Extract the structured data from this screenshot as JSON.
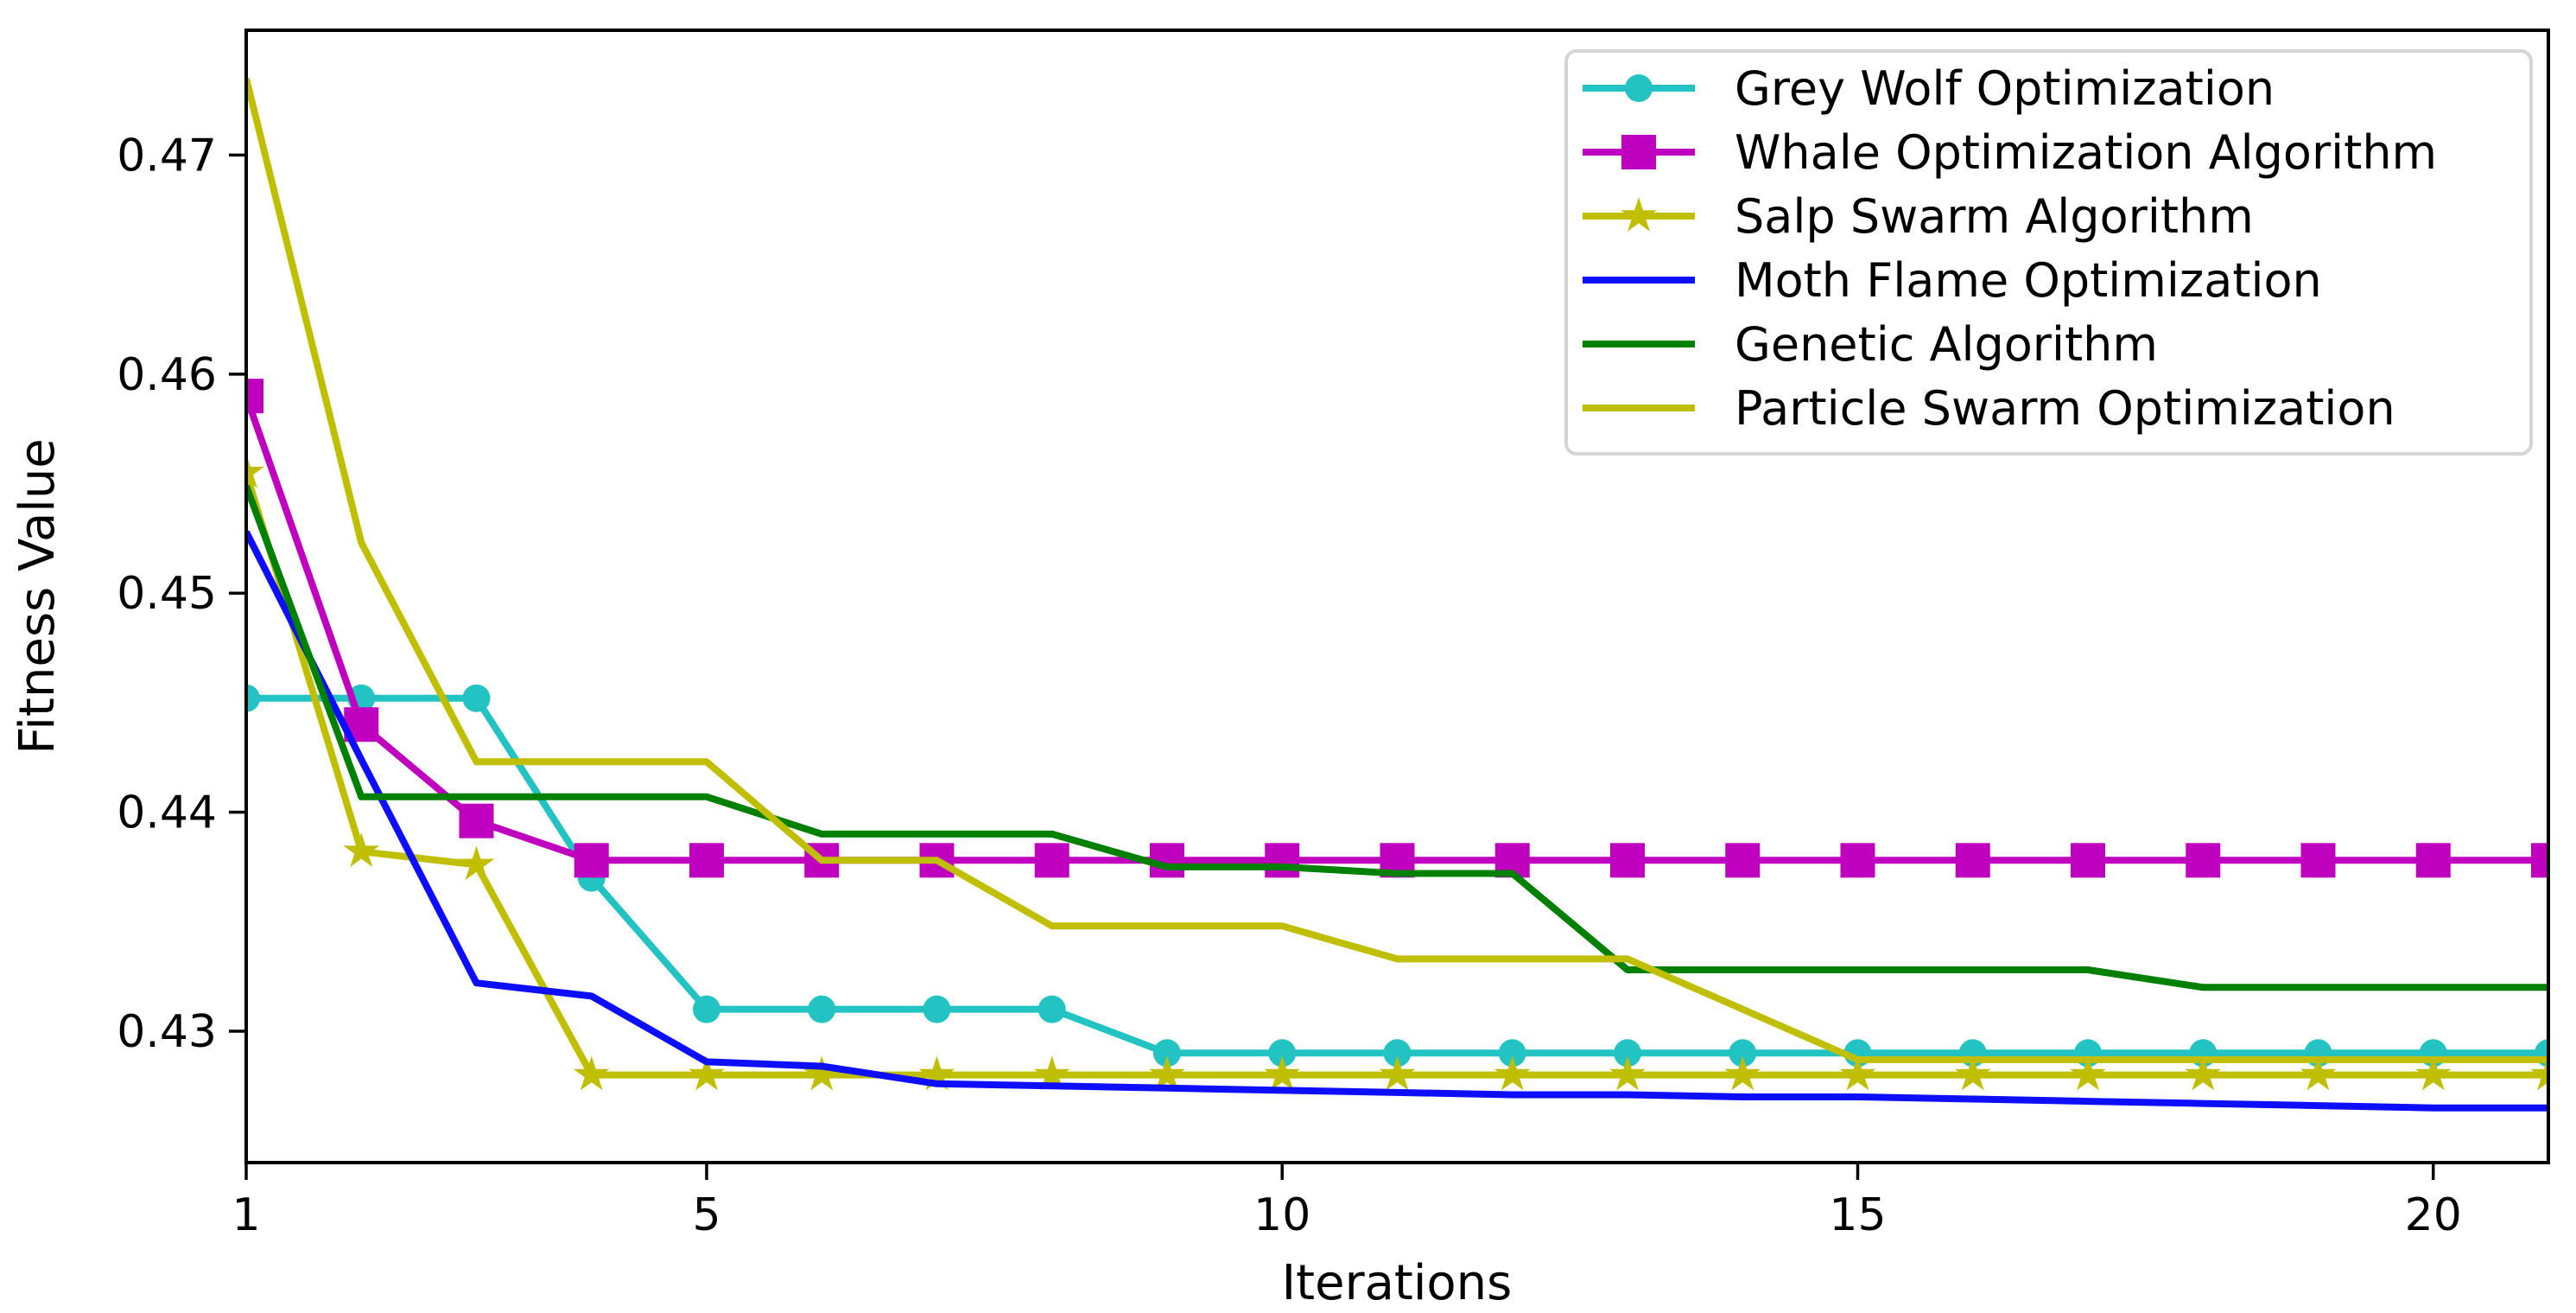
{
  "chart_data": {
    "type": "line",
    "title": "",
    "xlabel": "Iterations",
    "ylabel": "Fitness Value",
    "x": [
      1,
      2,
      3,
      4,
      5,
      6,
      7,
      8,
      9,
      10,
      11,
      12,
      13,
      14,
      15,
      16,
      17,
      18,
      19,
      20,
      21
    ],
    "xlim": [
      1,
      21
    ],
    "ylim": [
      0.424,
      0.4757
    ],
    "xticks": [
      1,
      5,
      10,
      15,
      20
    ],
    "yticks": [
      0.43,
      0.44,
      0.45,
      0.46,
      0.47
    ],
    "grid": false,
    "legend_position": "upper right",
    "axis_color": "#000000",
    "legend_border_color": "#d5d5d5",
    "series": [
      {
        "name": "Grey Wolf Optimization",
        "color": "#23c3c3",
        "marker": "circle",
        "values": [
          0.4452,
          0.4452,
          0.4452,
          0.437,
          0.431,
          0.431,
          0.431,
          0.431,
          0.429,
          0.429,
          0.429,
          0.429,
          0.429,
          0.429,
          0.429,
          0.429,
          0.429,
          0.429,
          0.429,
          0.429,
          0.429
        ]
      },
      {
        "name": "Whale Optimization Algorithm",
        "color": "#bf00bf",
        "marker": "square",
        "values": [
          0.459,
          0.444,
          0.4396,
          0.4378,
          0.4378,
          0.4378,
          0.4378,
          0.4378,
          0.4378,
          0.4378,
          0.4378,
          0.4378,
          0.4378,
          0.4378,
          0.4378,
          0.4378,
          0.4378,
          0.4378,
          0.4378,
          0.4378,
          0.4378
        ]
      },
      {
        "name": "Salp Swarm Algorithm",
        "color": "#bfbf00",
        "marker": "star",
        "values": [
          0.4555,
          0.4382,
          0.4376,
          0.428,
          0.428,
          0.428,
          0.428,
          0.428,
          0.428,
          0.428,
          0.428,
          0.428,
          0.428,
          0.428,
          0.428,
          0.428,
          0.428,
          0.428,
          0.428,
          0.428,
          0.428
        ]
      },
      {
        "name": "Moth Flame Optimization",
        "color": "#0e0eff",
        "marker": "none",
        "values": [
          0.4528,
          0.4424,
          0.4322,
          0.4316,
          0.4286,
          0.4284,
          0.4276,
          0.4275,
          0.4274,
          0.4273,
          0.4272,
          0.4271,
          0.4271,
          0.427,
          0.427,
          0.4269,
          0.4268,
          0.4267,
          0.4266,
          0.4265,
          0.4265
        ]
      },
      {
        "name": "Genetic Algorithm",
        "color": "#008000",
        "marker": "none",
        "values": [
          0.4549,
          0.4407,
          0.4407,
          0.4407,
          0.4407,
          0.439,
          0.439,
          0.439,
          0.4375,
          0.4375,
          0.4372,
          0.4372,
          0.4328,
          0.4328,
          0.4328,
          0.4328,
          0.4328,
          0.432,
          0.432,
          0.432,
          0.432
        ]
      },
      {
        "name": "Particle Swarm Optimization",
        "color": "#bfbf00",
        "marker": "none",
        "values": [
          0.4735,
          0.4523,
          0.4423,
          0.4423,
          0.4423,
          0.4378,
          0.4378,
          0.4348,
          0.4348,
          0.4348,
          0.4333,
          0.4333,
          0.4333,
          0.431,
          0.4287,
          0.4287,
          0.4287,
          0.4287,
          0.4287,
          0.4287,
          0.4287
        ]
      }
    ]
  }
}
